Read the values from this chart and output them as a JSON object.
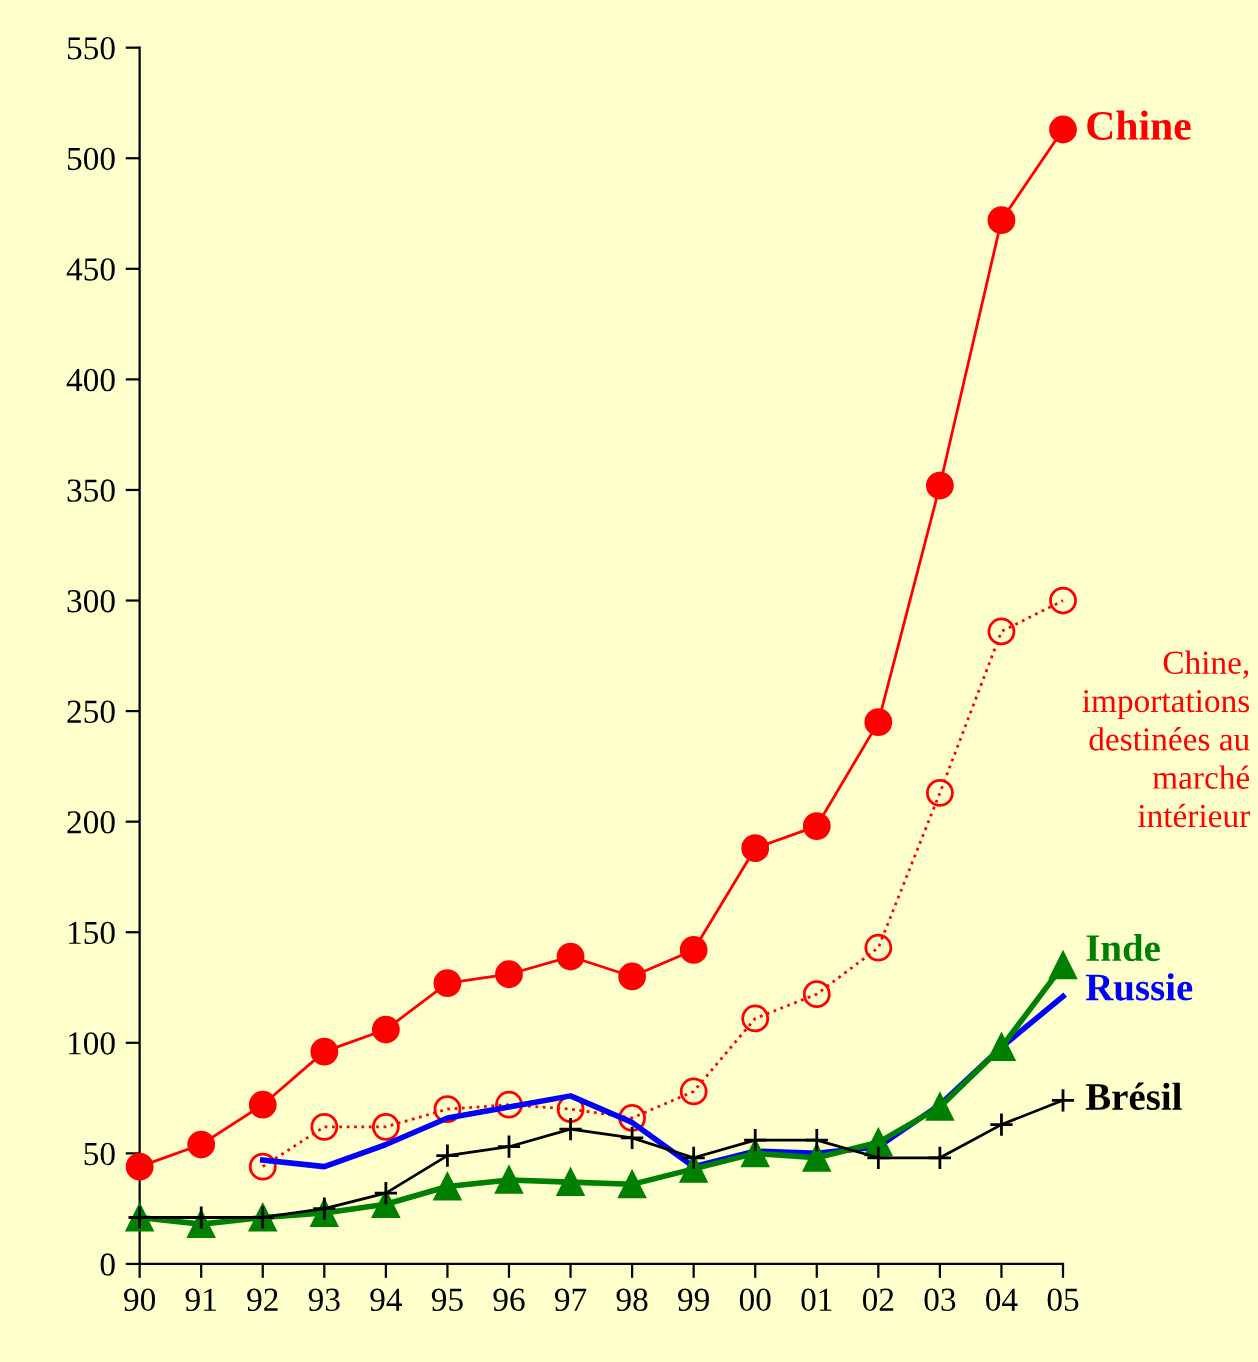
{
  "chart_data": {
    "type": "line",
    "categories": [
      "90",
      "91",
      "92",
      "93",
      "94",
      "95",
      "96",
      "97",
      "98",
      "99",
      "00",
      "01",
      "02",
      "03",
      "04",
      "05"
    ],
    "ylim": [
      0,
      550
    ],
    "yticks": [
      0,
      50,
      100,
      150,
      200,
      250,
      300,
      350,
      400,
      450,
      500,
      550
    ],
    "grid": false,
    "legend": false,
    "series": [
      {
        "name": "Chine",
        "color": "#ff0000",
        "marker": "circle",
        "line_style": "solid",
        "values": [
          44,
          54,
          72,
          96,
          106,
          127,
          131,
          139,
          130,
          142,
          188,
          198,
          245,
          352,
          472,
          513
        ]
      },
      {
        "name": "Chine,\nimportations\ndestinées au\nmarché\nintérieur",
        "color": "#ff0000",
        "marker": "open circle",
        "line_style": "dotted",
        "values": [
          null,
          null,
          44,
          62,
          62,
          70,
          72,
          70,
          66,
          78,
          111,
          122,
          143,
          213,
          286,
          300
        ]
      },
      {
        "name": "Inde",
        "color": "#008000",
        "marker": "triangle",
        "line_style": "solid",
        "values": [
          21,
          18,
          21,
          23,
          27,
          35,
          38,
          37,
          36,
          43,
          50,
          48,
          55,
          71,
          98,
          135
        ]
      },
      {
        "name": "Russie",
        "color": "#0000ff",
        "marker": "none",
        "line_style": "solid",
        "values": [
          null,
          null,
          47,
          44,
          54,
          66,
          71,
          76,
          64,
          44,
          51,
          50,
          53,
          72,
          98,
          121
        ]
      },
      {
        "name": "Brésil",
        "color": "#000000",
        "marker": "cross",
        "line_style": "solid",
        "values": [
          21,
          21,
          21,
          25,
          32,
          49,
          53,
          61,
          57,
          48,
          56,
          56,
          48,
          48,
          63,
          74
        ]
      }
    ]
  }
}
